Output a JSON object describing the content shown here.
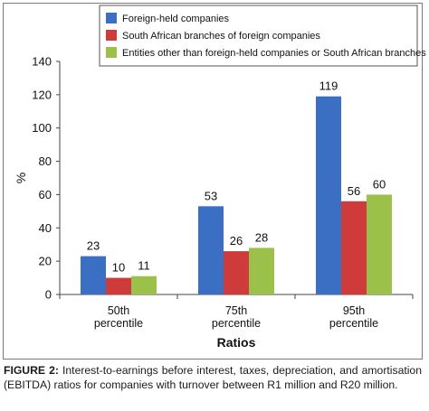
{
  "chart_data": {
    "type": "bar",
    "categories": [
      [
        "50th",
        "percentile"
      ],
      [
        "75th",
        "percentile"
      ],
      [
        "95th",
        "percentile"
      ]
    ],
    "series": [
      {
        "name": "Foreign-held companies",
        "values": [
          23,
          53,
          119
        ],
        "color": "#3a6fc4"
      },
      {
        "name": "South African branches of foreign companies",
        "values": [
          10,
          26,
          56
        ],
        "color": "#cf3b3b"
      },
      {
        "name": "Entities other than foreign-held companies or South African branches",
        "values": [
          11,
          28,
          60
        ],
        "color": "#9bc14a"
      }
    ],
    "xlabel": "Ratios",
    "ylabel": "%",
    "ylim": [
      0,
      140
    ],
    "yticks": [
      0,
      20,
      40,
      60,
      80,
      100,
      120,
      140
    ],
    "grid": false,
    "legend_position": "top-right"
  },
  "caption": {
    "label": "FIGURE 2:",
    "text": "Interest-to-earnings before interest, taxes, depreciation, and amortisation (EBITDA) ratios for companies with turnover between R1 million and R20 million."
  }
}
